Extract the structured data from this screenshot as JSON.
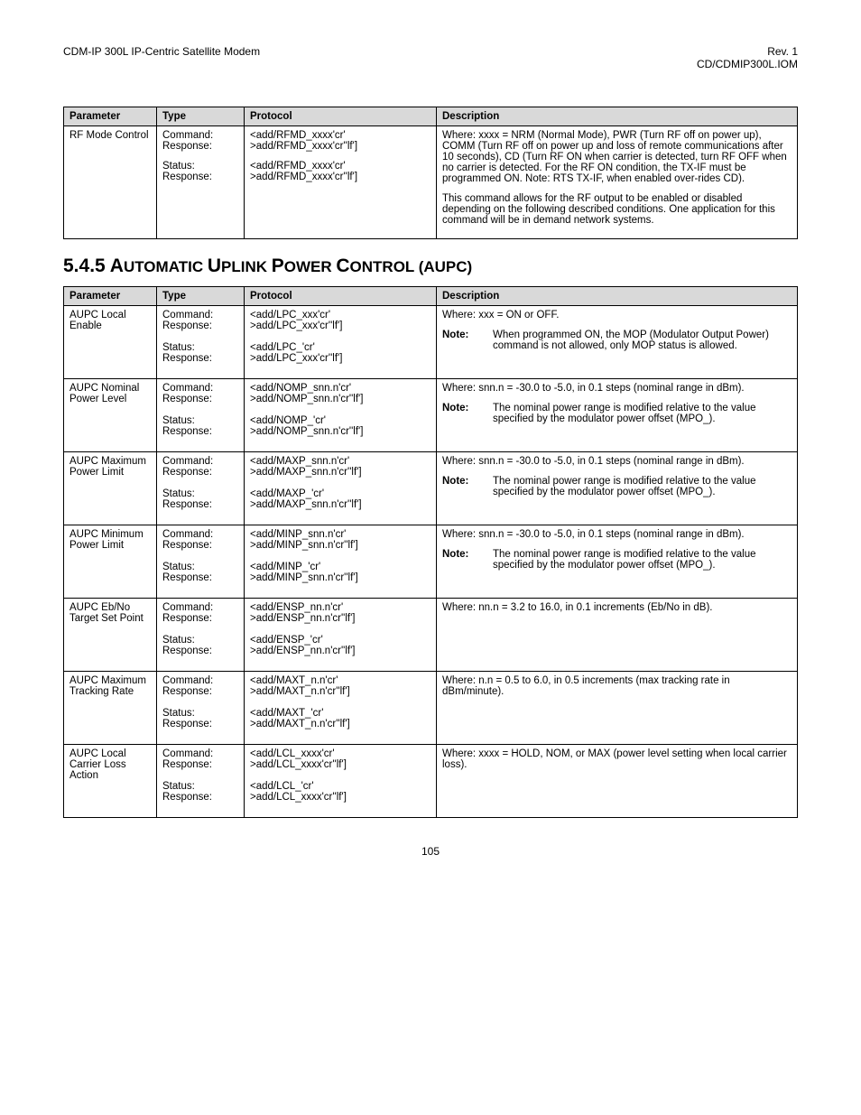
{
  "header": {
    "left": "CDM-IP 300L IP-Centric Satellite Modem",
    "right1": "Rev. 1",
    "right2": "CD/CDMIP300L.IOM"
  },
  "table1": {
    "headers": [
      "Parameter",
      "Type",
      "Protocol",
      "Description"
    ],
    "row": {
      "parameter": "RF Mode Control",
      "type": [
        "Command:",
        "Response:",
        "",
        "Status:",
        "Response:"
      ],
      "protocol": [
        "<add/RFMD_xxxx'cr'",
        ">add/RFMD_xxxx'cr''lf']",
        "",
        "<add/RFMD_xxxx'cr'",
        ">add/RFMD_xxxx'cr''lf']"
      ],
      "desc_p1": "Where: xxxx = NRM (Normal Mode), PWR (Turn RF off on power up), COMM (Turn RF off on power up and loss of remote communications after 10 seconds), CD (Turn RF ON when carrier is detected, turn RF OFF when no carrier is detected. For the RF ON condition, the TX-IF must be programmed ON. Note: RTS TX-IF, when enabled over-rides CD).",
      "desc_p2": "This command allows for the RF output to be enabled or disabled depending on the following described conditions. One application for this command will be in demand network systems."
    }
  },
  "section": {
    "number": "5.4.5",
    "title_pre": "A",
    "title_rest1": "UTOMATIC ",
    "title_u": "U",
    "title_rest2": "PLINK ",
    "title_p": "P",
    "title_rest3": "OWER ",
    "title_c": "C",
    "title_rest4": "ONTROL (AUPC)"
  },
  "table2": {
    "headers": [
      "Parameter",
      "Type",
      "Protocol",
      "Description"
    ],
    "rows": [
      {
        "parameter": "AUPC Local Enable",
        "type": [
          "Command:",
          "Response:",
          "",
          "Status:",
          "Response:"
        ],
        "protocol": [
          "<add/LPC_xxx'cr'",
          ">add/LPC_xxx'cr''lf']",
          "",
          "<add/LPC_'cr'",
          ">add/LPC_xxx'cr''lf']"
        ],
        "where": "Where: xxx = ON or OFF.",
        "note": "When programmed ON, the MOP (Modulator Output Power) command is not allowed, only MOP status is allowed."
      },
      {
        "parameter": "AUPC Nominal Power Level",
        "type": [
          "Command:",
          "Response:",
          "",
          "Status:",
          "Response:"
        ],
        "protocol": [
          "<add/NOMP_snn.n'cr'",
          ">add/NOMP_snn.n'cr''lf']",
          "",
          "<add/NOMP_'cr'",
          ">add/NOMP_snn.n'cr''lf']"
        ],
        "where": "Where: snn.n = -30.0 to -5.0, in 0.1 steps (nominal range in dBm).",
        "note": "The nominal power range is modified relative to the value specified by the modulator power offset (MPO_)."
      },
      {
        "parameter": "AUPC Maximum Power Limit",
        "type": [
          "Command:",
          "Response:",
          "",
          "Status:",
          "Response:"
        ],
        "protocol": [
          "<add/MAXP_snn.n'cr'",
          ">add/MAXP_snn.n'cr''lf']",
          "",
          "<add/MAXP_'cr'",
          ">add/MAXP_snn.n'cr''lf']"
        ],
        "where": "Where: snn.n = -30.0 to -5.0, in 0.1 steps (nominal range in dBm).",
        "note": "The nominal power range is modified relative to the value specified by the modulator power offset (MPO_)."
      },
      {
        "parameter": "AUPC Minimum Power Limit",
        "type": [
          "Command:",
          "Response:",
          "",
          "Status:",
          "Response:"
        ],
        "protocol": [
          "<add/MINP_snn.n'cr'",
          ">add/MINP_snn.n'cr''lf']",
          "",
          "<add/MINP_'cr'",
          ">add/MINP_snn.n'cr''lf']"
        ],
        "where": "Where: snn.n = -30.0 to -5.0, in 0.1 steps (nominal range in dBm).",
        "note": "The nominal power range is modified relative to the value specified by the modulator power offset (MPO_)."
      },
      {
        "parameter": "AUPC Eb/No Target Set Point",
        "type": [
          "Command:",
          "Response:",
          "",
          "Status:",
          "Response:"
        ],
        "protocol": [
          "<add/ENSP_nn.n'cr'",
          ">add/ENSP_nn.n'cr''lf']",
          "",
          "<add/ENSP_'cr'",
          ">add/ENSP_nn.n'cr''lf']"
        ],
        "where": "Where: nn.n = 3.2 to 16.0, in 0.1 increments (Eb/No in dB).",
        "note": null
      },
      {
        "parameter": "AUPC Maximum Tracking Rate",
        "type": [
          "Command:",
          "Response:",
          "",
          "Status:",
          "Response:"
        ],
        "protocol": [
          "<add/MAXT_n.n'cr'",
          ">add/MAXT_n.n'cr''lf']",
          "",
          "<add/MAXT_'cr'",
          ">add/MAXT_n.n'cr''lf']"
        ],
        "where": "Where: n.n = 0.5 to 6.0, in 0.5 increments (max tracking rate in dBm/minute).",
        "note": null
      },
      {
        "parameter": "AUPC Local Carrier Loss Action",
        "type": [
          "Command:",
          "Response:",
          "",
          "Status:",
          "Response:"
        ],
        "protocol": [
          "<add/LCL_xxxx'cr'",
          ">add/LCL_xxxx'cr''lf']",
          "",
          "<add/LCL_'cr'",
          ">add/LCL_xxxx'cr''lf']"
        ],
        "where": "Where: xxxx = HOLD, NOM, or MAX (power level setting when local carrier loss).",
        "note": null
      }
    ]
  },
  "labels": {
    "note": "Note:"
  },
  "page_number": "105"
}
